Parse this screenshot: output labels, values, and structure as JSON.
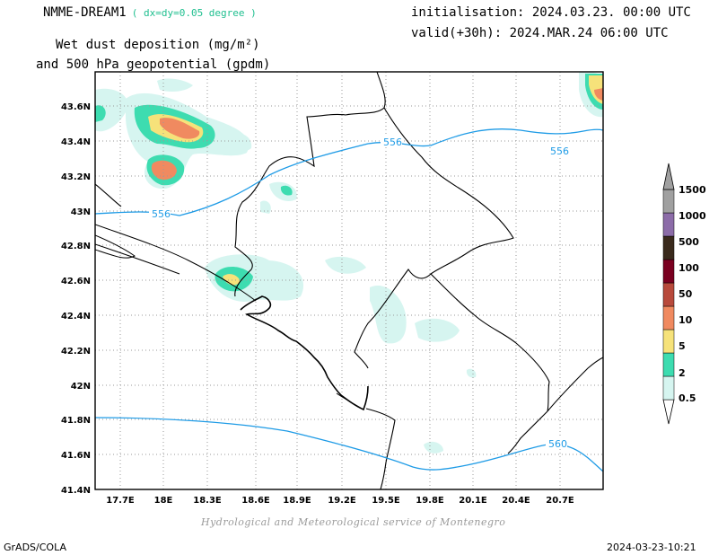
{
  "header": {
    "model": "NMME-DREAM1",
    "resolution": "( dx=dy=0.05 degree )",
    "init": "initialisation: 2024.03.23. 00:00 UTC",
    "valid": "valid(+30h): 2024.MAR.24 06:00 UTC",
    "title_line1": "Wet dust deposition (mg/m²)",
    "title_line2": "and 500 hPa geopotential (gpdm)"
  },
  "map": {
    "lon_labels": [
      "17.7E",
      "18E",
      "18.3E",
      "18.6E",
      "18.9E",
      "19.2E",
      "19.5E",
      "19.8E",
      "20.1E",
      "20.4E",
      "20.7E"
    ],
    "lat_labels": [
      "43.6N",
      "43.4N",
      "43.2N",
      "43N",
      "42.8N",
      "42.6N",
      "42.4N",
      "42.2N",
      "42N",
      "41.8N",
      "41.6N",
      "41.4N"
    ],
    "contour_labels": [
      "556",
      "556",
      "556",
      "560"
    ],
    "contour_color": "#1e9be6"
  },
  "colorbar": {
    "levels": [
      "0.5",
      "2",
      "5",
      "10",
      "50",
      "100",
      "500",
      "1000",
      "1500"
    ],
    "colors": [
      "#d6f5f0",
      "#3ddcb0",
      "#f6e27a",
      "#f08a60",
      "#b84a3c",
      "#7a0020",
      "#3a2a1c",
      "#8c6ca8",
      "#a0a0a0"
    ]
  },
  "footer": {
    "credit": "Hydrological and Meteorological service of Montenegro",
    "software": "GrADS/COLA",
    "timestamp": "2024-03-23-10:21"
  }
}
